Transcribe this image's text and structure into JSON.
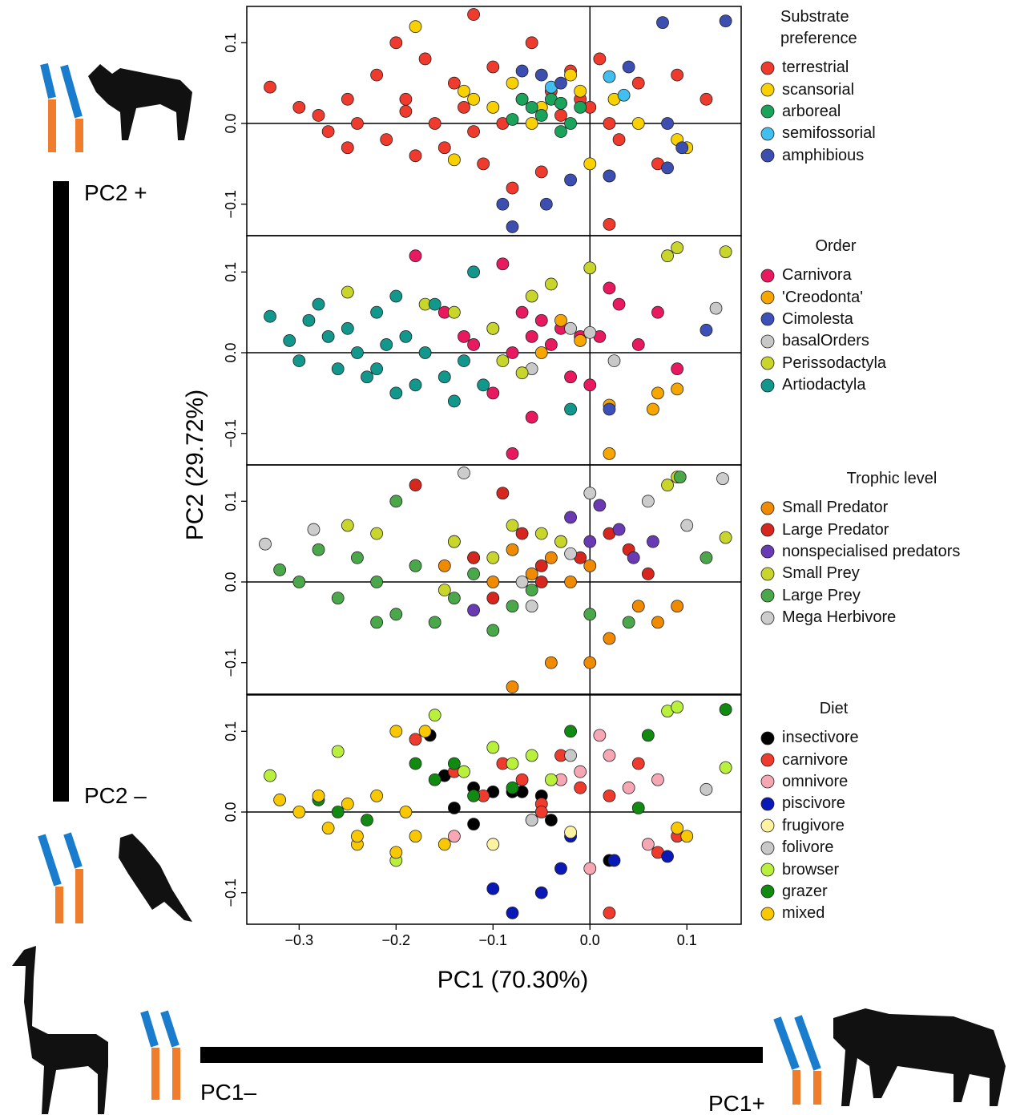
{
  "figure": {
    "xlabel": "PC1 (70.30%)",
    "ylabel": "PC2 (29.72%)",
    "annotations": {
      "pc2_plus": "PC2 +",
      "pc2_minus": "PC2 –",
      "pc1_minus": "PC1–",
      "pc1_plus": "PC1+"
    }
  },
  "chart_data": [
    {
      "type": "scatter",
      "legend_title": "Substrate preference",
      "xlim": [
        -0.354,
        0.156
      ],
      "ylim": [
        -0.139,
        0.145
      ],
      "yticks": [
        {
          "value": -0.1,
          "label": "−0.1"
        },
        {
          "value": 0,
          "label": "0.0"
        },
        0.1
      ],
      "zero_lines": true,
      "series": [
        {
          "name": "terrestrial",
          "color": "#ee3b2e",
          "x": [
            -0.33,
            -0.3,
            -0.28,
            -0.27,
            -0.25,
            -0.24,
            -0.22,
            -0.21,
            -0.2,
            -0.19,
            -0.18,
            -0.17,
            -0.16,
            -0.15,
            -0.14,
            -0.13,
            -0.12,
            -0.11,
            -0.1,
            -0.09,
            -0.08,
            -0.07,
            -0.06,
            -0.05,
            -0.04,
            -0.03,
            -0.02,
            -0.01,
            0.0,
            0.01,
            0.02,
            0.03,
            0.05,
            0.07,
            0.09,
            0.12,
            -0.12,
            -0.19,
            -0.25,
            0.02
          ],
          "values": [
            0.045,
            0.02,
            0.01,
            -0.01,
            0.03,
            0.0,
            0.06,
            -0.02,
            0.1,
            0.03,
            -0.04,
            0.08,
            0.0,
            -0.03,
            0.05,
            0.02,
            0.135,
            -0.05,
            0.07,
            0.0,
            -0.08,
            0.03,
            0.1,
            -0.06,
            0.04,
            0.01,
            0.065,
            0.03,
            0.02,
            0.08,
            0.0,
            -0.02,
            0.05,
            -0.05,
            0.06,
            0.03,
            -0.01,
            0.015,
            -0.03,
            -0.125
          ]
        },
        {
          "name": "scansorial",
          "color": "#f9d100",
          "x": [
            -0.18,
            -0.12,
            -0.1,
            -0.08,
            -0.06,
            -0.05,
            -0.03,
            -0.02,
            -0.01,
            0.0,
            0.02,
            0.05,
            0.09,
            0.1,
            -0.13,
            -0.14,
            0.025
          ],
          "values": [
            0.12,
            0.03,
            0.02,
            0.05,
            0.0,
            0.02,
            0.025,
            0.06,
            0.04,
            -0.05,
            -0.065,
            0.0,
            -0.02,
            -0.03,
            0.04,
            -0.045,
            0.03
          ]
        },
        {
          "name": "arboreal",
          "color": "#1aa35a",
          "x": [
            -0.07,
            -0.06,
            -0.05,
            -0.04,
            -0.03,
            -0.02,
            -0.01,
            -0.03,
            -0.08
          ],
          "values": [
            0.03,
            0.02,
            0.01,
            0.03,
            -0.01,
            0.0,
            0.02,
            0.025,
            0.005
          ]
        },
        {
          "name": "semifossorial",
          "color": "#41bfef",
          "x": [
            -0.04,
            0.02,
            0.035
          ],
          "values": [
            0.045,
            0.058,
            0.035
          ]
        },
        {
          "name": "amphibious",
          "color": "#3c4fb1",
          "x": [
            -0.07,
            -0.05,
            -0.03,
            -0.02,
            0.02,
            0.04,
            0.075,
            0.08,
            0.095,
            0.14,
            0.08,
            -0.09,
            -0.08,
            -0.045
          ],
          "values": [
            0.065,
            0.06,
            0.05,
            -0.07,
            -0.065,
            0.07,
            0.125,
            -0.055,
            -0.03,
            0.127,
            0.0,
            -0.1,
            -0.128,
            -0.1
          ]
        }
      ]
    },
    {
      "type": "scatter",
      "legend_title": "Order",
      "xlim": [
        -0.354,
        0.156
      ],
      "ylim": [
        -0.139,
        0.145
      ],
      "yticks": [
        {
          "value": -0.1,
          "label": "−0.1"
        },
        {
          "value": 0,
          "label": "0.0"
        },
        0.1
      ],
      "zero_lines": true,
      "series": [
        {
          "name": "Carnivora",
          "color": "#e8195f",
          "x": [
            -0.18,
            -0.15,
            -0.13,
            -0.12,
            -0.1,
            -0.09,
            -0.08,
            -0.07,
            -0.06,
            -0.05,
            -0.04,
            -0.03,
            -0.02,
            -0.01,
            0.0,
            0.01,
            0.03,
            0.05,
            0.07,
            0.09,
            -0.1,
            -0.08,
            -0.06,
            0.02
          ],
          "values": [
            0.12,
            0.05,
            0.02,
            0.01,
            0.03,
            0.11,
            0.0,
            0.05,
            0.02,
            0.04,
            0.01,
            0.03,
            -0.03,
            0.02,
            -0.04,
            0.02,
            0.06,
            0.01,
            0.05,
            -0.02,
            -0.05,
            -0.125,
            -0.08,
            0.08
          ]
        },
        {
          "name": "'Creodonta'",
          "color": "#f7a600",
          "x": [
            -0.05,
            -0.03,
            -0.01,
            0.02,
            0.07,
            0.065,
            0.09,
            0.02
          ],
          "values": [
            0.0,
            0.04,
            0.015,
            -0.065,
            -0.05,
            -0.07,
            -0.045,
            -0.125
          ]
        },
        {
          "name": "Cimolesta",
          "color": "#3d4fb8",
          "x": [
            0.02,
            0.12
          ],
          "values": [
            -0.07,
            0.028
          ]
        },
        {
          "name": "basalOrders",
          "color": "#c8c8c8",
          "x": [
            -0.06,
            -0.02,
            0.0,
            0.025,
            0.13
          ],
          "values": [
            -0.02,
            0.03,
            0.025,
            -0.01,
            0.055
          ]
        },
        {
          "name": "Perissodactyla",
          "color": "#c8d62b",
          "x": [
            -0.25,
            -0.17,
            -0.14,
            -0.1,
            -0.06,
            -0.04,
            0.0,
            0.08,
            0.09,
            0.14,
            -0.09,
            -0.07
          ],
          "values": [
            0.075,
            0.06,
            0.05,
            0.03,
            0.07,
            0.085,
            0.105,
            0.12,
            0.13,
            0.125,
            -0.01,
            -0.025
          ]
        },
        {
          "name": "Artiodactyla",
          "color": "#11978b",
          "x": [
            -0.33,
            -0.31,
            -0.3,
            -0.29,
            -0.28,
            -0.27,
            -0.26,
            -0.25,
            -0.24,
            -0.23,
            -0.22,
            -0.21,
            -0.2,
            -0.19,
            -0.18,
            -0.17,
            -0.16,
            -0.15,
            -0.14,
            -0.13,
            -0.12,
            -0.11,
            -0.2,
            -0.22,
            -0.02
          ],
          "values": [
            0.045,
            0.015,
            -0.01,
            0.04,
            0.06,
            0.02,
            -0.02,
            0.03,
            0.0,
            -0.03,
            0.05,
            0.01,
            -0.05,
            0.02,
            -0.04,
            0.0,
            0.06,
            -0.03,
            -0.06,
            -0.01,
            0.1,
            -0.04,
            0.07,
            -0.02,
            -0.07
          ]
        }
      ]
    },
    {
      "type": "scatter",
      "legend_title": "Trophic level",
      "xlim": [
        -0.354,
        0.156
      ],
      "ylim": [
        -0.139,
        0.145
      ],
      "yticks": [
        {
          "value": -0.1,
          "label": "−0.1"
        },
        {
          "value": 0,
          "label": "0.0"
        },
        0.1
      ],
      "zero_lines": true,
      "series": [
        {
          "name": "Small Predator",
          "color": "#f08a00",
          "x": [
            -0.15,
            -0.12,
            -0.1,
            -0.08,
            -0.06,
            -0.04,
            -0.02,
            0.0,
            0.02,
            0.05,
            0.07,
            0.09,
            -0.04,
            -0.08,
            0.0
          ],
          "values": [
            0.02,
            0.03,
            0.0,
            0.04,
            0.01,
            0.03,
            0.0,
            0.02,
            -0.07,
            -0.03,
            -0.05,
            -0.03,
            -0.1,
            -0.13,
            -0.1
          ]
        },
        {
          "name": "Large Predator",
          "color": "#d7261e",
          "x": [
            -0.18,
            -0.14,
            -0.12,
            -0.09,
            -0.07,
            -0.05,
            -0.03,
            -0.01,
            0.02,
            0.04,
            0.06,
            -0.1,
            -0.05
          ],
          "values": [
            0.12,
            0.05,
            0.03,
            0.11,
            0.06,
            0.02,
            0.05,
            0.03,
            0.06,
            0.04,
            0.01,
            -0.02,
            0.0
          ]
        },
        {
          "name": "nonspecialised predators",
          "color": "#6a3ab5",
          "x": [
            -0.02,
            0.0,
            0.01,
            0.03,
            0.045,
            0.065,
            -0.12
          ],
          "values": [
            0.08,
            0.05,
            0.095,
            0.065,
            0.03,
            0.05,
            -0.035
          ]
        },
        {
          "name": "Small Prey",
          "color": "#c8d62b",
          "x": [
            -0.25,
            -0.22,
            -0.14,
            -0.1,
            -0.08,
            -0.05,
            -0.03,
            0.08,
            0.09,
            0.14,
            -0.15
          ],
          "values": [
            0.07,
            0.06,
            0.05,
            0.03,
            0.07,
            0.06,
            0.05,
            0.12,
            0.13,
            0.055,
            -0.01
          ]
        },
        {
          "name": "Large Prey",
          "color": "#4aa84a",
          "x": [
            -0.32,
            -0.3,
            -0.28,
            -0.26,
            -0.24,
            -0.22,
            -0.2,
            -0.18,
            -0.16,
            -0.14,
            -0.12,
            -0.1,
            -0.08,
            -0.06,
            -0.2,
            -0.22,
            0.0,
            0.04,
            0.12,
            0.093
          ],
          "values": [
            0.015,
            0.0,
            0.04,
            -0.02,
            0.03,
            0.0,
            -0.04,
            0.02,
            -0.05,
            -0.02,
            0.01,
            -0.06,
            -0.03,
            -0.01,
            0.1,
            -0.05,
            -0.04,
            -0.05,
            0.03,
            0.13
          ]
        },
        {
          "name": "Mega Herbivore",
          "color": "#cccccc",
          "x": [
            -0.335,
            -0.285,
            -0.13,
            -0.07,
            -0.06,
            -0.02,
            0.0,
            0.06,
            0.1,
            0.137
          ],
          "values": [
            0.047,
            0.065,
            0.135,
            0.0,
            -0.03,
            0.035,
            0.11,
            0.1,
            0.07,
            0.128
          ]
        }
      ]
    },
    {
      "type": "scatter",
      "legend_title": "Diet",
      "xlim": [
        -0.354,
        0.156
      ],
      "ylim": [
        -0.139,
        0.145
      ],
      "yticks": [
        {
          "value": -0.1,
          "label": "−0.1"
        },
        {
          "value": 0,
          "label": "0.0"
        },
        0.1
      ],
      "zero_lines": true,
      "xticks": [
        {
          "value": -0.3,
          "label": "−0.3"
        },
        {
          "value": -0.2,
          "label": "−0.2"
        },
        {
          "value": -0.1,
          "label": "−0.1"
        },
        {
          "value": 0,
          "label": "0.0"
        },
        0.1
      ],
      "series": [
        {
          "name": "insectivore",
          "color": "#000000",
          "x": [
            -0.165,
            -0.15,
            -0.14,
            -0.12,
            -0.1,
            -0.08,
            -0.07,
            -0.06,
            -0.05,
            -0.04,
            0.02,
            -0.12
          ],
          "values": [
            0.095,
            0.045,
            0.005,
            0.03,
            0.025,
            0.025,
            0.025,
            -0.01,
            0.02,
            -0.01,
            -0.06,
            -0.015
          ]
        },
        {
          "name": "carnivore",
          "color": "#ee3b2e",
          "x": [
            -0.18,
            -0.14,
            -0.11,
            -0.09,
            -0.07,
            -0.05,
            -0.03,
            -0.01,
            0.02,
            0.05,
            0.07,
            0.09,
            0.02,
            -0.05
          ],
          "values": [
            0.09,
            0.05,
            0.02,
            0.06,
            0.04,
            0.01,
            0.07,
            0.03,
            0.02,
            0.06,
            -0.05,
            -0.03,
            -0.125,
            0.0
          ]
        },
        {
          "name": "omnivore",
          "color": "#f7a6b4",
          "x": [
            -0.14,
            -0.03,
            -0.01,
            0.0,
            0.01,
            0.02,
            0.04,
            0.06,
            0.07
          ],
          "values": [
            -0.03,
            0.04,
            0.05,
            -0.07,
            0.095,
            0.07,
            0.03,
            -0.04,
            0.04
          ]
        },
        {
          "name": "piscivore",
          "color": "#0a18b8",
          "x": [
            -0.1,
            -0.08,
            -0.05,
            -0.02,
            -0.03,
            0.025,
            0.08
          ],
          "values": [
            -0.095,
            -0.125,
            -0.1,
            -0.03,
            -0.07,
            -0.06,
            -0.055
          ]
        },
        {
          "name": "frugivore",
          "color": "#fff2a0",
          "x": [
            -0.1,
            -0.02
          ],
          "values": [
            -0.04,
            -0.025
          ]
        },
        {
          "name": "folivore",
          "color": "#c8c8c8",
          "x": [
            -0.02,
            0.12,
            -0.06
          ],
          "values": [
            0.07,
            0.028,
            -0.01
          ]
        },
        {
          "name": "browser",
          "color": "#b8f03c",
          "x": [
            -0.33,
            -0.26,
            -0.16,
            -0.13,
            -0.1,
            -0.08,
            -0.06,
            -0.04,
            0.08,
            0.09,
            0.14,
            -0.2
          ],
          "values": [
            0.045,
            0.075,
            0.12,
            0.05,
            0.08,
            0.06,
            0.07,
            0.04,
            0.125,
            0.13,
            0.055,
            -0.06
          ]
        },
        {
          "name": "grazer",
          "color": "#118a11",
          "x": [
            -0.28,
            -0.26,
            -0.18,
            -0.16,
            -0.14,
            -0.12,
            -0.08,
            -0.02,
            0.05,
            0.06,
            0.14,
            -0.23
          ],
          "values": [
            0.015,
            0.0,
            0.06,
            0.04,
            0.06,
            0.02,
            0.03,
            0.1,
            0.005,
            0.095,
            0.127,
            -0.01
          ]
        },
        {
          "name": "mixed",
          "color": "#f9c800",
          "x": [
            -0.32,
            -0.3,
            -0.28,
            -0.27,
            -0.25,
            -0.24,
            -0.22,
            -0.2,
            -0.19,
            -0.18,
            -0.17,
            -0.15,
            -0.2,
            -0.24,
            0.09,
            0.1
          ],
          "values": [
            0.015,
            0.0,
            0.02,
            -0.02,
            0.01,
            -0.04,
            0.02,
            -0.05,
            0.0,
            -0.03,
            0.1,
            -0.04,
            0.1,
            -0.03,
            -0.02,
            -0.03
          ]
        }
      ]
    }
  ]
}
